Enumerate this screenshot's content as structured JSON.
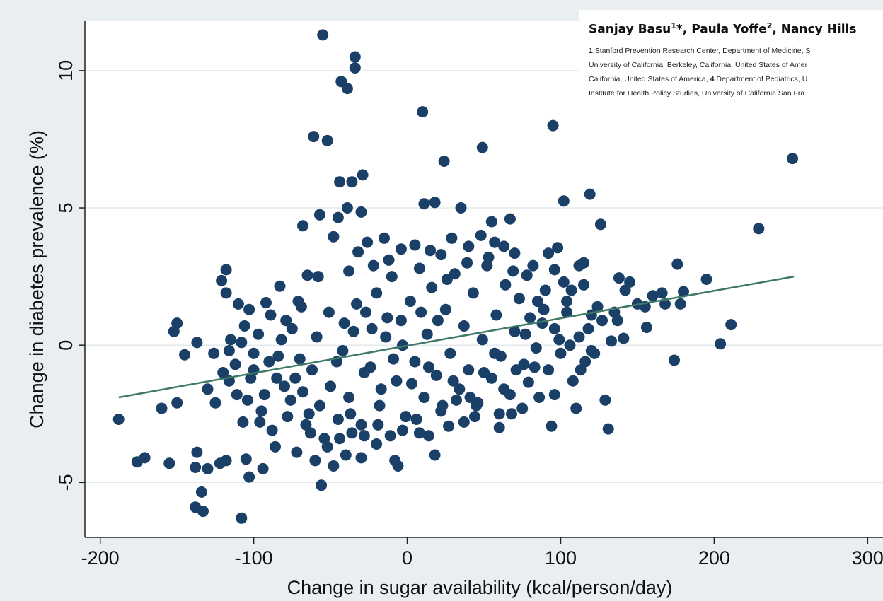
{
  "chart_data": {
    "type": "scatter",
    "title": "",
    "xlabel": "Change in sugar availability (kcal/person/day)",
    "ylabel": "Change in diabetes prevalence (%)",
    "xlim": [
      -210,
      310
    ],
    "ylim": [
      -7,
      11.8
    ],
    "xticks": [
      "-200",
      "-100",
      "0",
      "100",
      "200",
      "300"
    ],
    "yticks": [
      "-5",
      "0",
      "5",
      "10"
    ],
    "grid": true,
    "legend": "none",
    "colors": {
      "points": "#1b4068",
      "fit_line": "#3f7a66",
      "plot_bg": "#ffffff",
      "outer_bg": "#e9eef1",
      "grid": "#e3eaee"
    },
    "fit_line": {
      "x": [
        -188,
        252
      ],
      "y": [
        -1.9,
        2.5
      ]
    },
    "points": [
      [
        -55,
        11.3
      ],
      [
        -34,
        10.5
      ],
      [
        -34,
        10.1
      ],
      [
        -43,
        9.6
      ],
      [
        -39,
        9.35
      ],
      [
        10,
        8.5
      ],
      [
        95,
        8.0
      ],
      [
        -61,
        7.6
      ],
      [
        -52,
        7.45
      ],
      [
        49,
        7.2
      ],
      [
        251,
        6.8
      ],
      [
        24,
        6.7
      ],
      [
        -29,
        6.2
      ],
      [
        -44,
        5.95
      ],
      [
        -36,
        5.95
      ],
      [
        119,
        5.5
      ],
      [
        102,
        5.25
      ],
      [
        11,
        5.15
      ],
      [
        18,
        5.2
      ],
      [
        35,
        5.0
      ],
      [
        -39,
        5.0
      ],
      [
        -30,
        4.85
      ],
      [
        -57,
        4.75
      ],
      [
        55,
        4.5
      ],
      [
        67,
        4.6
      ],
      [
        126,
        4.4
      ],
      [
        229,
        4.25
      ],
      [
        -68,
        4.35
      ],
      [
        -45,
        4.65
      ],
      [
        -160,
        -2.3
      ],
      [
        -188,
        -2.7
      ],
      [
        -176,
        -4.25
      ],
      [
        -171,
        -4.1
      ],
      [
        -155,
        -4.3
      ],
      [
        -138,
        -4.45
      ],
      [
        -137,
        -3.9
      ],
      [
        -130,
        -4.5
      ],
      [
        -122,
        -4.3
      ],
      [
        -118,
        -4.2
      ],
      [
        -134,
        -5.35
      ],
      [
        -138,
        -5.9
      ],
      [
        -133,
        -6.05
      ],
      [
        -108,
        -6.3
      ],
      [
        -103,
        -4.8
      ],
      [
        -105,
        -4.15
      ],
      [
        -56,
        -5.1
      ],
      [
        -150,
        0.8
      ],
      [
        -152,
        0.5
      ],
      [
        -145,
        -0.35
      ],
      [
        -137,
        0.1
      ],
      [
        -118,
        2.75
      ],
      [
        -121,
        2.35
      ],
      [
        -118,
        1.9
      ],
      [
        -110,
        1.5
      ],
      [
        -103,
        1.3
      ],
      [
        -92,
        1.55
      ],
      [
        -83,
        2.15
      ],
      [
        -71,
        1.6
      ],
      [
        -65,
        2.55
      ],
      [
        -58,
        2.5
      ],
      [
        -150,
        -2.1
      ],
      [
        -126,
        -0.3
      ],
      [
        -130,
        -1.6
      ],
      [
        -125,
        -2.1
      ],
      [
        -116,
        -1.3
      ],
      [
        -107,
        -2.8
      ],
      [
        -100,
        -0.9
      ],
      [
        -95,
        -2.4
      ],
      [
        -88,
        -3.1
      ],
      [
        -80,
        -1.5
      ],
      [
        -78,
        -2.6
      ],
      [
        -70,
        -0.5
      ],
      [
        -63,
        -3.2
      ],
      [
        -86,
        -3.7
      ],
      [
        -94,
        -4.5
      ],
      [
        -72,
        -3.9
      ],
      [
        -60,
        -4.2
      ],
      [
        -48,
        -4.4
      ],
      [
        -40,
        -4.0
      ],
      [
        -30,
        -4.1
      ],
      [
        -20,
        -3.6
      ],
      [
        -8,
        -4.2
      ],
      [
        -6,
        -4.4
      ],
      [
        8,
        -3.2
      ],
      [
        18,
        -4.0
      ],
      [
        27,
        -2.95
      ],
      [
        37,
        -2.8
      ],
      [
        44,
        -2.6
      ],
      [
        60,
        -3.0
      ],
      [
        68,
        -2.5
      ],
      [
        79,
        -1.35
      ],
      [
        94,
        -2.95
      ],
      [
        96,
        -1.8
      ],
      [
        110,
        -2.3
      ],
      [
        129,
        -2.0
      ],
      [
        131,
        -3.05
      ],
      [
        133,
        0.15
      ],
      [
        141,
        0.25
      ],
      [
        156,
        0.65
      ],
      [
        174,
        -0.55
      ],
      [
        178,
        1.5
      ],
      [
        204,
        0.05
      ],
      [
        211,
        0.75
      ],
      [
        195,
        2.4
      ],
      [
        176,
        2.95
      ],
      [
        180,
        1.95
      ],
      [
        166,
        1.9
      ],
      [
        160,
        1.8
      ],
      [
        150,
        1.5
      ],
      [
        145,
        2.3
      ],
      [
        138,
        2.45
      ],
      [
        137,
        0.9
      ],
      [
        127,
        0.9
      ],
      [
        120,
        1.1
      ],
      [
        115,
        2.2
      ],
      [
        112,
        2.9
      ],
      [
        104,
        1.2
      ],
      [
        102,
        2.3
      ],
      [
        96,
        2.75
      ],
      [
        98,
        3.55
      ],
      [
        92,
        3.35
      ],
      [
        85,
        1.6
      ],
      [
        78,
        2.55
      ],
      [
        70,
        3.35
      ],
      [
        63,
        3.6
      ],
      [
        57,
        3.75
      ],
      [
        48,
        4.0
      ],
      [
        40,
        3.6
      ],
      [
        29,
        3.9
      ],
      [
        22,
        3.3
      ],
      [
        15,
        3.45
      ],
      [
        5,
        3.65
      ],
      [
        -4,
        3.5
      ],
      [
        -12,
        3.1
      ],
      [
        -22,
        2.9
      ],
      [
        -38,
        2.7
      ],
      [
        -32,
        3.4
      ],
      [
        -26,
        3.75
      ],
      [
        -15,
        3.9
      ],
      [
        -48,
        3.95
      ],
      [
        -75,
        0.6
      ],
      [
        -82,
        0.2
      ],
      [
        -90,
        -0.6
      ],
      [
        -100,
        -0.3
      ],
      [
        -108,
        0.1
      ],
      [
        -112,
        -0.7
      ],
      [
        -120,
        -1.0
      ],
      [
        -116,
        -0.2
      ],
      [
        -85,
        -1.2
      ],
      [
        -76,
        -2.0
      ],
      [
        -68,
        -1.7
      ],
      [
        -62,
        -0.9
      ],
      [
        -57,
        -2.2
      ],
      [
        -50,
        -1.5
      ],
      [
        -45,
        -2.7
      ],
      [
        -42,
        -0.2
      ],
      [
        -38,
        -1.9
      ],
      [
        -35,
        0.5
      ],
      [
        -30,
        -2.9
      ],
      [
        -27,
        1.2
      ],
      [
        -24,
        -0.8
      ],
      [
        -20,
        1.9
      ],
      [
        -18,
        -2.2
      ],
      [
        -14,
        0.3
      ],
      [
        -10,
        2.5
      ],
      [
        -7,
        -1.3
      ],
      [
        -4,
        0.9
      ],
      [
        -1,
        -2.6
      ],
      [
        2,
        1.6
      ],
      [
        5,
        -0.6
      ],
      [
        8,
        2.8
      ],
      [
        11,
        -1.9
      ],
      [
        13,
        0.4
      ],
      [
        16,
        2.1
      ],
      [
        19,
        -1.1
      ],
      [
        22,
        -2.4
      ],
      [
        25,
        1.3
      ],
      [
        28,
        -0.3
      ],
      [
        31,
        2.6
      ],
      [
        34,
        -1.6
      ],
      [
        37,
        0.7
      ],
      [
        40,
        -0.9
      ],
      [
        43,
        1.9
      ],
      [
        46,
        -2.1
      ],
      [
        49,
        0.2
      ],
      [
        52,
        2.9
      ],
      [
        55,
        -1.2
      ],
      [
        58,
        1.1
      ],
      [
        61,
        -0.4
      ],
      [
        64,
        2.2
      ],
      [
        67,
        -1.8
      ],
      [
        70,
        0.5
      ],
      [
        73,
        1.7
      ],
      [
        76,
        -0.7
      ],
      [
        80,
        1.0
      ],
      [
        84,
        -0.1
      ],
      [
        88,
        0.8
      ],
      [
        92,
        -0.9
      ],
      [
        96,
        0.6
      ],
      [
        100,
        -0.3
      ],
      [
        104,
        1.6
      ],
      [
        108,
        -1.3
      ],
      [
        112,
        0.3
      ],
      [
        116,
        -0.6
      ],
      [
        120,
        -0.2
      ],
      [
        124,
        1.4
      ],
      [
        90,
        2.0
      ],
      [
        86,
        -1.9
      ],
      [
        82,
        2.9
      ],
      [
        75,
        -2.3
      ],
      [
        69,
        2.7
      ],
      [
        60,
        -2.5
      ],
      [
        53,
        3.2
      ],
      [
        45,
        -2.2
      ],
      [
        39,
        3.0
      ],
      [
        32,
        -2.0
      ],
      [
        26,
        2.4
      ],
      [
        20,
        0.9
      ],
      [
        14,
        -0.8
      ],
      [
        9,
        1.2
      ],
      [
        3,
        -1.4
      ],
      [
        -3,
        0.0
      ],
      [
        -9,
        -0.5
      ],
      [
        -13,
        1.0
      ],
      [
        -17,
        -1.6
      ],
      [
        -23,
        0.6
      ],
      [
        -28,
        -1.0
      ],
      [
        -33,
        1.5
      ],
      [
        -37,
        -2.5
      ],
      [
        -41,
        0.8
      ],
      [
        -46,
        -0.6
      ],
      [
        -51,
        1.2
      ],
      [
        -54,
        -3.4
      ],
      [
        -59,
        0.3
      ],
      [
        -64,
        -2.5
      ],
      [
        -69,
        1.4
      ],
      [
        -73,
        -1.2
      ],
      [
        -79,
        0.9
      ],
      [
        -84,
        -0.4
      ],
      [
        -89,
        1.1
      ],
      [
        -93,
        -1.8
      ],
      [
        -97,
        0.4
      ],
      [
        -102,
        -1.2
      ],
      [
        -106,
        0.7
      ],
      [
        -111,
        -1.8
      ],
      [
        -115,
        0.2
      ],
      [
        -96,
        -2.8
      ],
      [
        -104,
        -2.0
      ],
      [
        -66,
        -2.9
      ],
      [
        -52,
        -3.7
      ],
      [
        -44,
        -3.4
      ],
      [
        -36,
        -3.2
      ],
      [
        -28,
        -3.3
      ],
      [
        -19,
        -2.9
      ],
      [
        -11,
        -3.3
      ],
      [
        -3,
        -3.1
      ],
      [
        6,
        -2.7
      ],
      [
        14,
        -3.3
      ],
      [
        23,
        -2.2
      ],
      [
        30,
        -1.3
      ],
      [
        41,
        -1.9
      ],
      [
        50,
        -1.0
      ],
      [
        57,
        -0.3
      ],
      [
        63,
        -1.6
      ],
      [
        71,
        -0.9
      ],
      [
        77,
        0.4
      ],
      [
        83,
        -0.8
      ],
      [
        89,
        1.3
      ],
      [
        99,
        0.2
      ],
      [
        106,
        0.0
      ],
      [
        113,
        -0.9
      ],
      [
        118,
        0.6
      ],
      [
        122,
        -0.3
      ],
      [
        135,
        1.2
      ],
      [
        142,
        2.0
      ],
      [
        155,
        1.4
      ],
      [
        168,
        1.5
      ],
      [
        115,
        3.0
      ],
      [
        107,
        2.0
      ]
    ]
  },
  "header": {
    "authors": {
      "a1_name": "Sanjay Basu",
      "a1_sup": "1",
      "a1_mark": "*",
      "sep1": ", ",
      "a2_name": "Paula Yoffe",
      "a2_sup": "2",
      "sep2": ", ",
      "a3_name": "Nancy Hills"
    },
    "affiliations": {
      "line1_num": "1",
      "line1": " Stanford Prevention Research Center, Department of Medicine, S",
      "line2": "University of California, Berkeley, California, United States of Amer",
      "line3_a": "California, United States of America, ",
      "line3_num": "4",
      "line3_b": " Department of Pediatrics, U",
      "line4": "Institute for Health Policy Studies, University of California San Fra"
    }
  }
}
